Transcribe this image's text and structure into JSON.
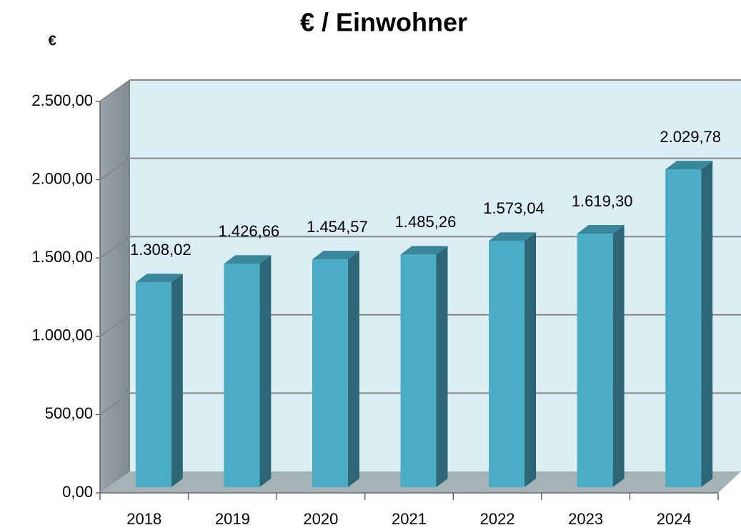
{
  "chart_data": {
    "type": "bar3d",
    "title": "€ / Einwohner",
    "y_axis_label": "€",
    "categories": [
      "2018",
      "2019",
      "2020",
      "2021",
      "2022",
      "2023",
      "2024"
    ],
    "values": [
      1308.02,
      1426.66,
      1454.57,
      1485.26,
      1573.04,
      1619.3,
      2029.78
    ],
    "value_labels": [
      "1.308,02",
      "1.426,66",
      "1.454,57",
      "1.485,26",
      "1.573,04",
      "1.619,30",
      "2.029,78"
    ],
    "color": "#4bacc6",
    "ylim": [
      0,
      2500
    ],
    "yticks": [
      {
        "value": 0,
        "label": "0,00"
      },
      {
        "value": 500,
        "label": "500,00"
      },
      {
        "value": 1000,
        "label": "1.000,00"
      },
      {
        "value": 1500,
        "label": "1.500,00"
      },
      {
        "value": 2000,
        "label": "2.000,00"
      },
      {
        "value": 2500,
        "label": "2.500,00"
      }
    ],
    "grid": true
  }
}
